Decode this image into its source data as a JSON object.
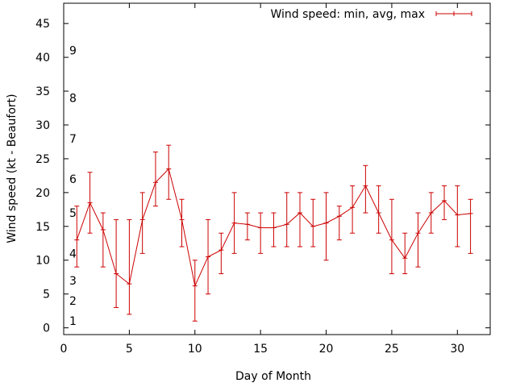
{
  "chart_data": {
    "type": "line",
    "title": "",
    "xlabel": "Day of Month",
    "ylabel": "Wind speed (kt - Beaufort)",
    "xlim": [
      0,
      32.5
    ],
    "ylim": [
      -1,
      48
    ],
    "xticks": [
      0,
      5,
      10,
      15,
      20,
      25,
      30
    ],
    "yticks": [
      0,
      5,
      10,
      15,
      20,
      25,
      30,
      35,
      40,
      45
    ],
    "grid": false,
    "legend_position": "top-right",
    "beaufort_labels": [
      {
        "label": "1",
        "value": 1
      },
      {
        "label": "2",
        "value": 4
      },
      {
        "label": "3",
        "value": 7
      },
      {
        "label": "4",
        "value": 11
      },
      {
        "label": "5",
        "value": 17
      },
      {
        "label": "6",
        "value": 22
      },
      {
        "label": "7",
        "value": 28
      },
      {
        "label": "8",
        "value": 34
      },
      {
        "label": "9",
        "value": 41
      }
    ],
    "series": [
      {
        "name": "Wind speed: min, avg, max",
        "color": "#cc0000",
        "x": [
          1,
          2,
          3,
          4,
          5,
          6,
          7,
          8,
          9,
          10,
          11,
          12,
          13,
          14,
          15,
          16,
          17,
          18,
          19,
          20,
          21,
          22,
          23,
          24,
          25,
          26,
          27,
          28,
          29,
          30,
          31
        ],
        "avg": [
          13,
          18.5,
          14.5,
          8,
          6.5,
          16,
          21.5,
          23.5,
          16,
          6.2,
          10.5,
          11.5,
          15.5,
          15.3,
          14.8,
          14.8,
          15.3,
          17,
          15,
          15.5,
          16.5,
          17.8,
          21,
          17,
          13,
          10.3,
          14,
          17,
          18.8,
          16.7,
          16.9
        ],
        "min": [
          9,
          14,
          9,
          3,
          2,
          11,
          18,
          19,
          12,
          1,
          5,
          8,
          11,
          13,
          11,
          12,
          12,
          12,
          12,
          10,
          13,
          14,
          17,
          14,
          8,
          8,
          9,
          14,
          16,
          12,
          11
        ],
        "max": [
          18,
          23,
          17,
          16,
          16,
          20,
          26,
          27,
          19,
          10,
          16,
          14,
          20,
          17,
          17,
          17,
          20,
          20,
          19,
          20,
          18,
          21,
          24,
          21,
          19,
          14,
          17,
          20,
          21,
          21,
          19
        ]
      }
    ]
  }
}
